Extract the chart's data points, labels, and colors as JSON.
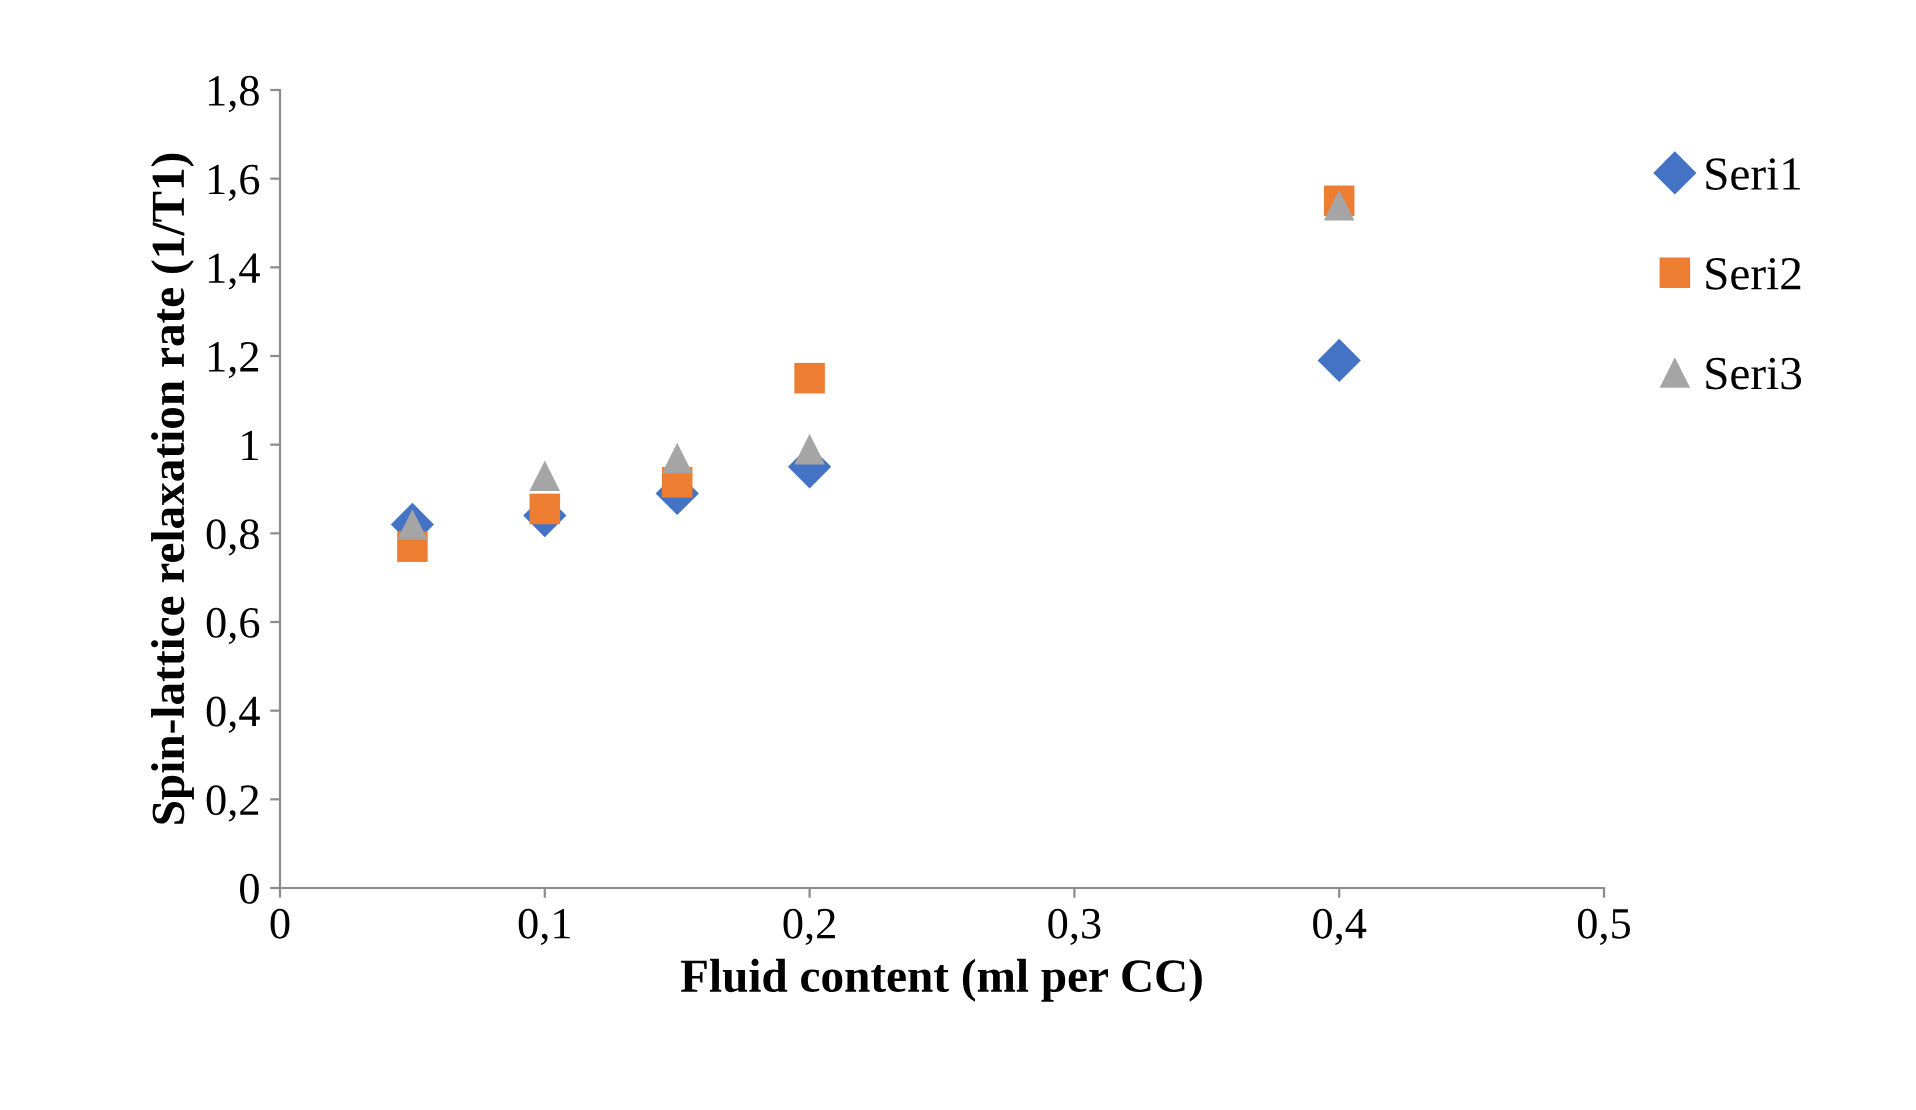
{
  "chart_data": {
    "type": "scatter",
    "xlabel": "Fluid content (ml per CC)",
    "ylabel": "Spin-lattice relaxation rate (1/T1)",
    "x": [
      0.05,
      0.1,
      0.15,
      0.2,
      0.4
    ],
    "series": [
      {
        "name": "Seri1",
        "color": "#4472c4",
        "marker": "diamond",
        "values": [
          0.82,
          0.84,
          0.89,
          0.95,
          1.19
        ]
      },
      {
        "name": "Seri2",
        "color": "#ed7d31",
        "marker": "square",
        "values": [
          0.77,
          0.855,
          0.915,
          1.15,
          1.55
        ]
      },
      {
        "name": "Seri3",
        "color": "#a5a5a5",
        "marker": "triangle",
        "values": [
          0.82,
          0.93,
          0.97,
          0.99,
          1.54
        ]
      }
    ],
    "xlim": [
      0,
      0.5
    ],
    "xticks": [
      {
        "value": 0,
        "label": "0"
      },
      {
        "value": 0.1,
        "label": "0,1"
      },
      {
        "value": 0.2,
        "label": "0,2"
      },
      {
        "value": 0.3,
        "label": "0,3"
      },
      {
        "value": 0.4,
        "label": "0,4"
      },
      {
        "value": 0.5,
        "label": "0,5"
      }
    ],
    "ylim": [
      0,
      1.8
    ],
    "yticks": [
      {
        "value": 0,
        "label": "0"
      },
      {
        "value": 0.2,
        "label": "0,2"
      },
      {
        "value": 0.4,
        "label": "0,4"
      },
      {
        "value": 0.6,
        "label": "0,6"
      },
      {
        "value": 0.8,
        "label": "0,8"
      },
      {
        "value": 1,
        "label": "1"
      },
      {
        "value": 1.2,
        "label": "1,2"
      },
      {
        "value": 1.4,
        "label": "1,4"
      },
      {
        "value": 1.6,
        "label": "1,6"
      },
      {
        "value": 1.8,
        "label": "1,8"
      }
    ],
    "grid": false,
    "legend": "right"
  }
}
